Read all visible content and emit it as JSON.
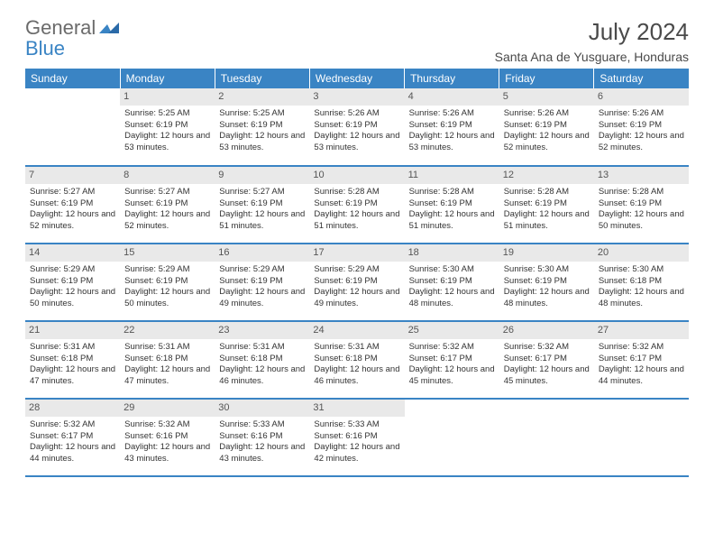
{
  "logo": {
    "general": "General",
    "blue": "Blue"
  },
  "title": "July 2024",
  "location": "Santa Ana de Yusguare, Honduras",
  "colors": {
    "header_bg": "#3a84c4",
    "header_text": "#ffffff",
    "daynum_bg": "#e9e9e9",
    "row_border": "#3a84c4",
    "logo_gray": "#6b6b6b",
    "logo_blue": "#3a84c4"
  },
  "weekdays": [
    "Sunday",
    "Monday",
    "Tuesday",
    "Wednesday",
    "Thursday",
    "Friday",
    "Saturday"
  ],
  "weeks": [
    [
      {
        "n": "",
        "empty": true
      },
      {
        "n": "1",
        "sr": "5:25 AM",
        "ss": "6:19 PM",
        "dl": "12 hours and 53 minutes."
      },
      {
        "n": "2",
        "sr": "5:25 AM",
        "ss": "6:19 PM",
        "dl": "12 hours and 53 minutes."
      },
      {
        "n": "3",
        "sr": "5:26 AM",
        "ss": "6:19 PM",
        "dl": "12 hours and 53 minutes."
      },
      {
        "n": "4",
        "sr": "5:26 AM",
        "ss": "6:19 PM",
        "dl": "12 hours and 53 minutes."
      },
      {
        "n": "5",
        "sr": "5:26 AM",
        "ss": "6:19 PM",
        "dl": "12 hours and 52 minutes."
      },
      {
        "n": "6",
        "sr": "5:26 AM",
        "ss": "6:19 PM",
        "dl": "12 hours and 52 minutes."
      }
    ],
    [
      {
        "n": "7",
        "sr": "5:27 AM",
        "ss": "6:19 PM",
        "dl": "12 hours and 52 minutes."
      },
      {
        "n": "8",
        "sr": "5:27 AM",
        "ss": "6:19 PM",
        "dl": "12 hours and 52 minutes."
      },
      {
        "n": "9",
        "sr": "5:27 AM",
        "ss": "6:19 PM",
        "dl": "12 hours and 51 minutes."
      },
      {
        "n": "10",
        "sr": "5:28 AM",
        "ss": "6:19 PM",
        "dl": "12 hours and 51 minutes."
      },
      {
        "n": "11",
        "sr": "5:28 AM",
        "ss": "6:19 PM",
        "dl": "12 hours and 51 minutes."
      },
      {
        "n": "12",
        "sr": "5:28 AM",
        "ss": "6:19 PM",
        "dl": "12 hours and 51 minutes."
      },
      {
        "n": "13",
        "sr": "5:28 AM",
        "ss": "6:19 PM",
        "dl": "12 hours and 50 minutes."
      }
    ],
    [
      {
        "n": "14",
        "sr": "5:29 AM",
        "ss": "6:19 PM",
        "dl": "12 hours and 50 minutes."
      },
      {
        "n": "15",
        "sr": "5:29 AM",
        "ss": "6:19 PM",
        "dl": "12 hours and 50 minutes."
      },
      {
        "n": "16",
        "sr": "5:29 AM",
        "ss": "6:19 PM",
        "dl": "12 hours and 49 minutes."
      },
      {
        "n": "17",
        "sr": "5:29 AM",
        "ss": "6:19 PM",
        "dl": "12 hours and 49 minutes."
      },
      {
        "n": "18",
        "sr": "5:30 AM",
        "ss": "6:19 PM",
        "dl": "12 hours and 48 minutes."
      },
      {
        "n": "19",
        "sr": "5:30 AM",
        "ss": "6:19 PM",
        "dl": "12 hours and 48 minutes."
      },
      {
        "n": "20",
        "sr": "5:30 AM",
        "ss": "6:18 PM",
        "dl": "12 hours and 48 minutes."
      }
    ],
    [
      {
        "n": "21",
        "sr": "5:31 AM",
        "ss": "6:18 PM",
        "dl": "12 hours and 47 minutes."
      },
      {
        "n": "22",
        "sr": "5:31 AM",
        "ss": "6:18 PM",
        "dl": "12 hours and 47 minutes."
      },
      {
        "n": "23",
        "sr": "5:31 AM",
        "ss": "6:18 PM",
        "dl": "12 hours and 46 minutes."
      },
      {
        "n": "24",
        "sr": "5:31 AM",
        "ss": "6:18 PM",
        "dl": "12 hours and 46 minutes."
      },
      {
        "n": "25",
        "sr": "5:32 AM",
        "ss": "6:17 PM",
        "dl": "12 hours and 45 minutes."
      },
      {
        "n": "26",
        "sr": "5:32 AM",
        "ss": "6:17 PM",
        "dl": "12 hours and 45 minutes."
      },
      {
        "n": "27",
        "sr": "5:32 AM",
        "ss": "6:17 PM",
        "dl": "12 hours and 44 minutes."
      }
    ],
    [
      {
        "n": "28",
        "sr": "5:32 AM",
        "ss": "6:17 PM",
        "dl": "12 hours and 44 minutes."
      },
      {
        "n": "29",
        "sr": "5:32 AM",
        "ss": "6:16 PM",
        "dl": "12 hours and 43 minutes."
      },
      {
        "n": "30",
        "sr": "5:33 AM",
        "ss": "6:16 PM",
        "dl": "12 hours and 43 minutes."
      },
      {
        "n": "31",
        "sr": "5:33 AM",
        "ss": "6:16 PM",
        "dl": "12 hours and 42 minutes."
      },
      {
        "n": "",
        "empty": true
      },
      {
        "n": "",
        "empty": true
      },
      {
        "n": "",
        "empty": true
      }
    ]
  ],
  "labels": {
    "sunrise": "Sunrise:",
    "sunset": "Sunset:",
    "daylight": "Daylight:"
  }
}
